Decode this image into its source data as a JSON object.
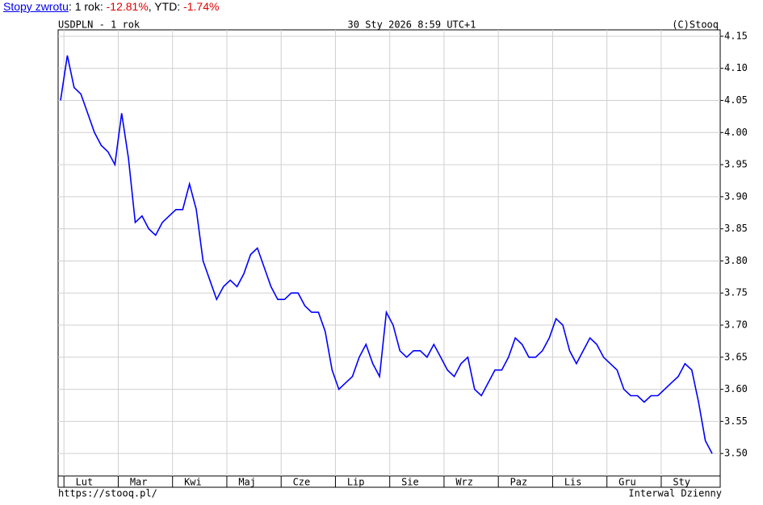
{
  "header": {
    "link": "Stopy zwrotu",
    "label1": ": 1 rok: ",
    "value1": "-12.81%",
    "label2": ", YTD: ",
    "value2": "-1.74%"
  },
  "chart_data": {
    "type": "line",
    "title": "USDPLN - 1 rok",
    "subtitle": "30 Sty 2026 8:59 UTC+1",
    "copyright": "(C)Stooq",
    "footer_left": "https://stooq.pl/",
    "footer_right": "Interwal Dzienny",
    "categories": [
      null,
      null,
      null,
      null,
      "Lut",
      null,
      null,
      null,
      null,
      null,
      null,
      null,
      "Mar",
      null,
      null,
      null,
      null,
      null,
      null,
      null,
      "Kwi",
      null,
      null,
      null,
      null,
      null,
      null,
      null,
      "Maj",
      null,
      null,
      null,
      null,
      null,
      null,
      null,
      "Cze",
      null,
      null,
      null,
      null,
      null,
      null,
      null,
      "Lip",
      null,
      null,
      null,
      null,
      null,
      null,
      null,
      "Sie",
      null,
      null,
      null,
      null,
      null,
      null,
      null,
      "Wrz",
      null,
      null,
      null,
      null,
      null,
      null,
      null,
      "Paz",
      null,
      null,
      null,
      null,
      null,
      null,
      null,
      "Lis",
      null,
      null,
      null,
      null,
      null,
      null,
      null,
      "Gru",
      null,
      null,
      null,
      null,
      null,
      null,
      null,
      "Sty",
      null,
      null,
      null,
      null
    ],
    "series": [
      {
        "name": "USDPLN",
        "color": "#0000ff",
        "values": [
          4.05,
          4.12,
          4.07,
          4.06,
          4.03,
          4.0,
          3.98,
          3.97,
          3.95,
          4.03,
          3.96,
          3.86,
          3.87,
          3.85,
          3.84,
          3.86,
          3.87,
          3.88,
          3.88,
          3.92,
          3.88,
          3.8,
          3.77,
          3.74,
          3.76,
          3.77,
          3.76,
          3.78,
          3.81,
          3.82,
          3.79,
          3.76,
          3.74,
          3.74,
          3.75,
          3.75,
          3.73,
          3.72,
          3.72,
          3.69,
          3.63,
          3.6,
          3.61,
          3.62,
          3.65,
          3.67,
          3.64,
          3.62,
          3.72,
          3.7,
          3.66,
          3.65,
          3.66,
          3.66,
          3.65,
          3.67,
          3.65,
          3.63,
          3.62,
          3.64,
          3.65,
          3.6,
          3.59,
          3.61,
          3.63,
          3.63,
          3.65,
          3.68,
          3.67,
          3.65,
          3.65,
          3.66,
          3.68,
          3.71,
          3.7,
          3.66,
          3.64,
          3.66,
          3.68,
          3.67,
          3.65,
          3.64,
          3.63,
          3.6,
          3.59,
          3.59,
          3.58,
          3.59,
          3.59,
          3.6,
          3.61,
          3.62,
          3.64,
          3.63,
          3.58,
          3.52,
          3.5
        ]
      }
    ],
    "ylim": [
      3.465,
      4.16
    ],
    "yticks": [
      {
        "value": 3.5,
        "label": "3.50"
      },
      3.55,
      {
        "value": 3.6,
        "label": "3.60"
      },
      3.65,
      {
        "value": 3.7,
        "label": "3.70"
      },
      3.75,
      {
        "value": 3.8,
        "label": "3.80"
      },
      3.85,
      {
        "value": 3.9,
        "label": "3.90"
      },
      3.95,
      {
        "value": 4.0,
        "label": "4.00"
      },
      4.05,
      {
        "value": 4.1,
        "label": "4.10"
      },
      4.15
    ],
    "grid": true
  }
}
